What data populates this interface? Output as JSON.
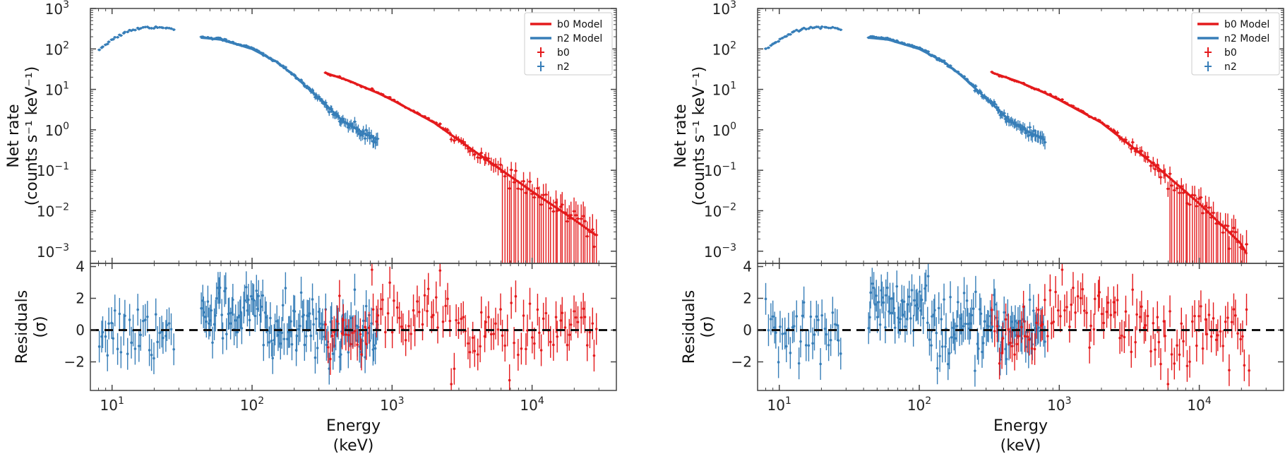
{
  "colors": {
    "b0": "#e41a1c",
    "n2": "#377eb8",
    "zero_line": "#111111",
    "axis": "#444444"
  },
  "labels": {
    "y_top_line1": "Net rate",
    "y_top_line2": "(counts s⁻¹ keV⁻¹)",
    "y_bottom_line1": "Residuals",
    "y_bottom_line2": "(σ)",
    "x_line1": "Energy",
    "x_line2": "(keV)"
  },
  "legend": {
    "b0_model": "b0 Model",
    "n2_model": "n2 Model",
    "b0_data": "b0",
    "n2_data": "n2"
  },
  "chart_data": [
    {
      "type": "scatter",
      "panel": "left",
      "xlabel": "Energy (keV)",
      "xscale": "log",
      "xlim": [
        7,
        40000
      ],
      "top": {
        "ylabel": "Net rate (counts s^-1 keV^-1)",
        "yscale": "log",
        "ylim": [
          0.0005,
          1000
        ],
        "yticks": [
          {
            "value": 0.001,
            "base": "10",
            "exp": "−3"
          },
          {
            "value": 0.01,
            "base": "10",
            "exp": "−2"
          },
          {
            "value": 0.1,
            "base": "10",
            "exp": "−1"
          },
          {
            "value": 1,
            "base": "10",
            "exp": "0"
          },
          {
            "value": 10,
            "base": "10",
            "exp": "1"
          },
          {
            "value": 100,
            "base": "10",
            "exp": "2"
          },
          {
            "value": 1000,
            "base": "10",
            "exp": "3"
          }
        ],
        "models": [
          {
            "name": "n2 Model",
            "segments": [
              [
                [
                  8,
                  95
                ],
                [
                  10,
                  170
                ],
                [
                  13,
                  280
                ],
                [
                  17,
                  340
                ],
                [
                  22,
                  345
                ],
                [
                  28,
                  310
                ]
              ],
              [
                [
                  43,
                  190
                ],
                [
                  60,
                  170
                ],
                [
                  100,
                  100
                ],
                [
                  150,
                  48
                ],
                [
                  200,
                  22
                ],
                [
                  300,
                  6
                ],
                [
                  450,
                  1.6
                ],
                [
                  600,
                  0.9
                ],
                [
                  800,
                  0.55
                ]
              ]
            ]
          },
          {
            "name": "b0 Model",
            "segments": [
              [
                [
                  330,
                  26
                ],
                [
                  500,
                  16
                ],
                [
                  800,
                  8
                ],
                [
                  1000,
                  5.5
                ],
                [
                  2000,
                  1.5
                ],
                [
                  3000,
                  0.55
                ],
                [
                  5000,
                  0.16
                ],
                [
                  10000,
                  0.03
                ],
                [
                  20000,
                  0.006
                ],
                [
                  30000,
                  0.0022
                ]
              ]
            ]
          }
        ],
        "data_ranges": [
          {
            "name": "n2",
            "ranges": [
              [
                8,
                30,
                40
              ],
              [
                43,
                820,
                140
              ]
            ]
          },
          {
            "name": "b0",
            "ranges": [
              [
                330,
                31000,
                120
              ]
            ]
          }
        ]
      },
      "bottom": {
        "ylabel": "Residuals (σ)",
        "ylim": [
          -3.8,
          4.2
        ],
        "yticks": [
          -2,
          0,
          2,
          4
        ],
        "zero_line": 0
      },
      "xticks": [
        {
          "value": 10,
          "base": "10",
          "exp": "1"
        },
        {
          "value": 100,
          "base": "10",
          "exp": "2"
        },
        {
          "value": 1000,
          "base": "10",
          "exp": "3"
        },
        {
          "value": 10000,
          "base": "10",
          "exp": "4"
        }
      ],
      "legend_position": "top-right"
    },
    {
      "type": "scatter",
      "panel": "right",
      "xlabel": "Energy (keV)",
      "xscale": "log",
      "xlim": [
        7,
        40000
      ],
      "top": {
        "ylabel": "Net rate (counts s^-1 keV^-1)",
        "yscale": "log",
        "ylim": [
          0.0005,
          1000
        ],
        "yticks": [
          {
            "value": 0.001,
            "base": "10",
            "exp": "−3"
          },
          {
            "value": 0.01,
            "base": "10",
            "exp": "−2"
          },
          {
            "value": 0.1,
            "base": "10",
            "exp": "−1"
          },
          {
            "value": 1,
            "base": "10",
            "exp": "0"
          },
          {
            "value": 10,
            "base": "10",
            "exp": "1"
          },
          {
            "value": 100,
            "base": "10",
            "exp": "2"
          },
          {
            "value": 1000,
            "base": "10",
            "exp": "3"
          }
        ],
        "models": [
          {
            "name": "n2 Model",
            "segments": [
              [
                [
                  8,
                  95
                ],
                [
                  10,
                  170
                ],
                [
                  13,
                  280
                ],
                [
                  17,
                  340
                ],
                [
                  22,
                  345
                ],
                [
                  28,
                  310
                ]
              ],
              [
                [
                  43,
                  190
                ],
                [
                  60,
                  170
                ],
                [
                  100,
                  100
                ],
                [
                  150,
                  48
                ],
                [
                  200,
                  22
                ],
                [
                  300,
                  6
                ],
                [
                  450,
                  1.6
                ],
                [
                  600,
                  0.9
                ],
                [
                  800,
                  0.55
                ]
              ]
            ]
          },
          {
            "name": "b0 Model",
            "segments": [
              [
                [
                  330,
                  26
                ],
                [
                  500,
                  16
                ],
                [
                  800,
                  8
                ],
                [
                  1000,
                  5.5
                ],
                [
                  2000,
                  1.5
                ],
                [
                  3000,
                  0.5
                ],
                [
                  5000,
                  0.12
                ],
                [
                  10000,
                  0.015
                ],
                [
                  20000,
                  0.0015
                ],
                [
                  23000,
                  0.0006
                ]
              ]
            ]
          }
        ],
        "data_ranges": [
          {
            "name": "n2",
            "ranges": [
              [
                8,
                30,
                40
              ],
              [
                43,
                820,
                140
              ]
            ]
          },
          {
            "name": "b0",
            "ranges": [
              [
                330,
                25000,
                120
              ]
            ]
          }
        ]
      },
      "bottom": {
        "ylabel": "Residuals (σ)",
        "ylim": [
          -3.8,
          4.2
        ],
        "yticks": [
          -2,
          0,
          2,
          4
        ],
        "zero_line": 0
      },
      "xticks": [
        {
          "value": 10,
          "base": "10",
          "exp": "1"
        },
        {
          "value": 100,
          "base": "10",
          "exp": "2"
        },
        {
          "value": 1000,
          "base": "10",
          "exp": "3"
        },
        {
          "value": 10000,
          "base": "10",
          "exp": "4"
        }
      ],
      "legend_position": "top-right"
    }
  ]
}
